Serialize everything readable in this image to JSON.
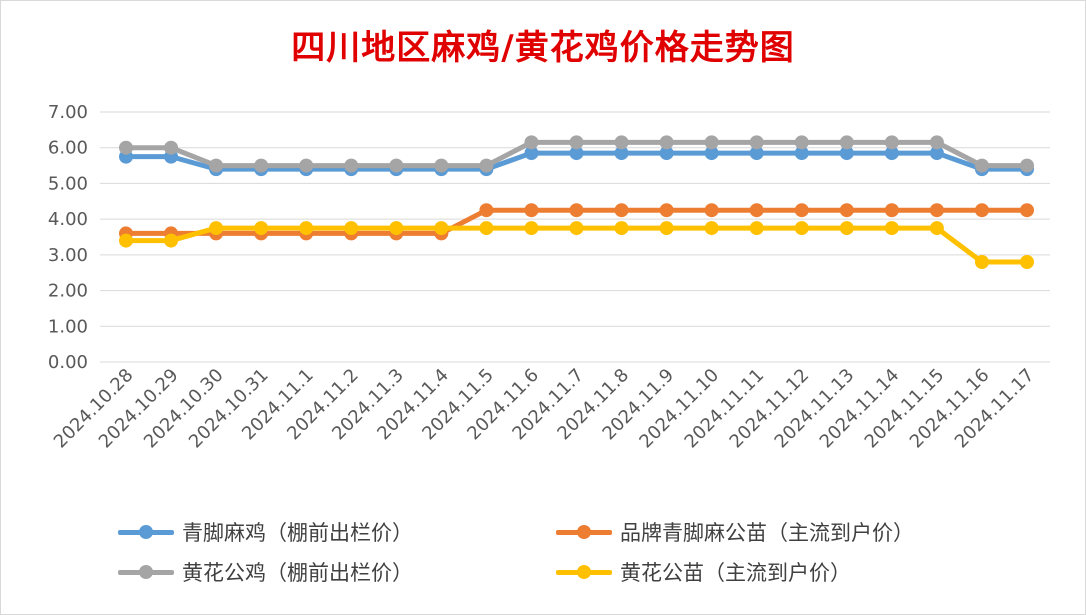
{
  "chart_data": {
    "type": "line",
    "title": "四川地区麻鸡/黄花鸡价格走势图",
    "categories": [
      "2024.10.28",
      "2024.10.29",
      "2024.10.30",
      "2024.10.31",
      "2024.11.1",
      "2024.11.2",
      "2024.11.3",
      "2024.11.4",
      "2024.11.5",
      "2024.11.6",
      "2024.11.7",
      "2024.11.8",
      "2024.11.9",
      "2024.11.10",
      "2024.11.11",
      "2024.11.12",
      "2024.11.13",
      "2024.11.14",
      "2024.11.15",
      "2024.11.16",
      "2024.11.17"
    ],
    "y_ticks": [
      "0.00",
      "1.00",
      "2.00",
      "3.00",
      "4.00",
      "5.00",
      "6.00",
      "7.00"
    ],
    "ylim": [
      0,
      7
    ],
    "grid": true,
    "legend_position": "bottom",
    "series": [
      {
        "name": "青脚麻鸡（棚前出栏价）",
        "color": "#5b9bd5",
        "values": [
          5.75,
          5.75,
          5.4,
          5.4,
          5.4,
          5.4,
          5.4,
          5.4,
          5.4,
          5.85,
          5.85,
          5.85,
          5.85,
          5.85,
          5.85,
          5.85,
          5.85,
          5.85,
          5.85,
          5.4,
          5.4
        ]
      },
      {
        "name": "品牌青脚麻公苗（主流到户价）",
        "color": "#ed7d31",
        "values": [
          3.6,
          3.6,
          3.6,
          3.6,
          3.6,
          3.6,
          3.6,
          3.6,
          4.25,
          4.25,
          4.25,
          4.25,
          4.25,
          4.25,
          4.25,
          4.25,
          4.25,
          4.25,
          4.25,
          4.25,
          4.25
        ]
      },
      {
        "name": "黄花公鸡（棚前出栏价）",
        "color": "#a5a5a5",
        "values": [
          6.0,
          6.0,
          5.5,
          5.5,
          5.5,
          5.5,
          5.5,
          5.5,
          5.5,
          6.15,
          6.15,
          6.15,
          6.15,
          6.15,
          6.15,
          6.15,
          6.15,
          6.15,
          6.15,
          5.5,
          5.5
        ]
      },
      {
        "name": "黄花公苗（主流到户价）",
        "color": "#ffc000",
        "values": [
          3.4,
          3.4,
          3.75,
          3.75,
          3.75,
          3.75,
          3.75,
          3.75,
          3.75,
          3.75,
          3.75,
          3.75,
          3.75,
          3.75,
          3.75,
          3.75,
          3.75,
          3.75,
          3.75,
          2.8,
          2.8
        ]
      }
    ]
  }
}
